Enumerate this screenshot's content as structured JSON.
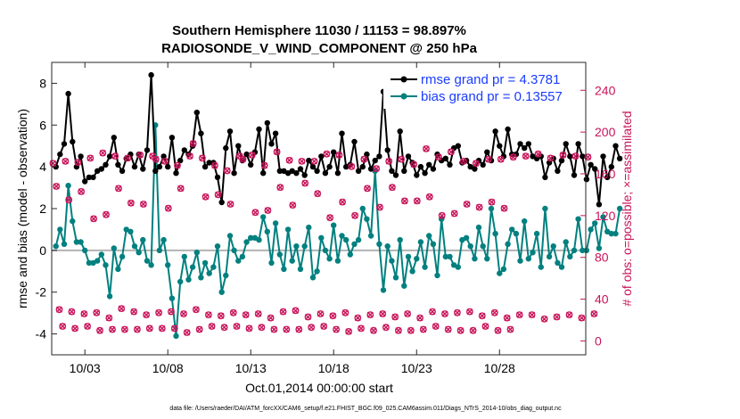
{
  "chart_data": {
    "type": "line",
    "title": "Southern Hemisphere 11030 / 11153 = 98.897%",
    "subtitle": "RADIOSONDE_V_WIND_COMPONENT @ 250 hPa",
    "xlabel": "Oct.01,2014 00:00:00 start",
    "ylabel": "rmse and bias (model - observation)",
    "ylabel_right": "# of obs: o=possible; ×=assimilated",
    "footer": "data file: /Users/raeder/DAI/ATM_forcXX/CAM6_setup/f.e21.FHIST_BGC.f09_025.CAM6assim.011/Diags_NTrS_2014-10/obs_diag_output.nc",
    "xlim": [
      1.0,
      33.2
    ],
    "ylim": [
      -5,
      9
    ],
    "ylim_right": [
      -13.3,
      266.7
    ],
    "x_ticks": [
      3,
      8,
      13,
      18,
      23,
      28
    ],
    "x_tick_labels": [
      "10/03",
      "10/08",
      "10/13",
      "10/18",
      "10/23",
      "10/28"
    ],
    "y_ticks": [
      -4,
      -2,
      0,
      2,
      4,
      6,
      8
    ],
    "y_tick_labels": [
      "-4",
      "-2",
      "0",
      "2",
      "4",
      "6",
      "8"
    ],
    "y2_ticks": [
      0,
      40,
      80,
      120,
      160,
      200,
      240
    ],
    "y2_tick_labels": [
      "0",
      "40",
      "80",
      "120",
      "160",
      "200",
      "240"
    ],
    "reference_line_y": 0,
    "legend": [
      "rmse grand pr = 4.3781",
      "bias grand pr = 0.13557"
    ],
    "legend_position": "top-right",
    "colors": {
      "rmse": "#000000",
      "bias": "#00807f",
      "obs": "#c8145a",
      "zero": "#b3b3b3"
    },
    "x_start": 1.25,
    "x_step": 0.25,
    "series": [
      {
        "name": "rmse",
        "values": [
          4.0,
          4.6,
          5.1,
          7.5,
          5.2,
          4.0,
          4.5,
          3.3,
          3.5,
          3.5,
          3.8,
          3.9,
          4.1,
          4.5,
          5.4,
          4.1,
          3.8,
          4.4,
          4.6,
          4.0,
          4.6,
          3.9,
          4.8,
          8.4,
          3.8,
          4.0,
          4.5,
          4.0,
          5.4,
          3.7,
          4.3,
          4.8,
          4.6,
          5.0,
          6.6,
          5.6,
          4.0,
          4.2,
          4.2,
          3.5,
          2.3,
          4.9,
          5.7,
          3.7,
          5.0,
          4.3,
          4.6,
          4.1,
          4.7,
          5.8,
          3.7,
          6.1,
          5.1,
          5.6,
          3.8,
          3.8,
          3.7,
          3.8,
          3.7,
          3.9,
          3.6,
          4.3,
          4.0,
          3.8,
          4.5,
          3.7,
          4.0,
          4.7,
          3.7,
          5.6,
          4.0,
          4.1,
          5.2,
          3.8,
          4.0,
          4.6,
          3.9,
          4.3,
          4.5,
          7.6,
          4.8,
          3.8,
          3.6,
          5.7,
          3.8,
          4.5,
          4.2,
          3.6,
          4.0,
          3.7,
          4.1,
          3.9,
          4.6,
          4.3,
          4.4,
          4.1,
          4.9,
          5.0,
          4.2,
          4.3,
          4.0,
          3.9,
          4.3,
          4.1,
          4.7,
          4.3,
          5.7,
          5.0,
          4.5,
          5.8,
          4.6,
          4.6,
          5.1,
          4.9,
          5.1,
          4.5,
          4.4,
          4.5,
          3.5,
          4.2,
          4.4,
          3.8,
          4.3,
          5.1,
          4.5,
          3.6,
          5.1,
          4.5,
          3.4,
          4.1,
          3.9,
          2.2,
          4.5,
          3.5,
          4.0,
          5.0,
          4.4
        ]
      },
      {
        "name": "bias",
        "values": [
          0.2,
          1.0,
          0.3,
          3.1,
          1.4,
          0.4,
          0.4,
          0.0,
          -0.6,
          -0.6,
          -0.5,
          -0.2,
          -0.7,
          -2.2,
          0.1,
          -0.9,
          -0.3,
          1.0,
          0.9,
          0.2,
          -0.1,
          0.5,
          -0.5,
          -0.7,
          6.0,
          0.0,
          0.5,
          -0.7,
          -2.3,
          -4.1,
          -1.5,
          -0.3,
          -1.4,
          -0.8,
          -0.1,
          -1.3,
          -0.6,
          -1.1,
          -0.8,
          0.2,
          -2.0,
          -1.2,
          0.7,
          0.0,
          -0.5,
          -0.3,
          0.4,
          0.6,
          0.6,
          0.5,
          1.6,
          0.9,
          -0.6,
          1.3,
          -0.2,
          -0.9,
          1.0,
          -0.5,
          0.2,
          -0.9,
          0.2,
          1.1,
          -1.3,
          -1.0,
          0.6,
          0.0,
          -0.4,
          1.2,
          -0.5,
          0.7,
          0.5,
          -0.2,
          0.3,
          0.5,
          2.0,
          1.5,
          0.7,
          3.8,
          0.3,
          -1.9,
          0.2,
          -0.5,
          -1.3,
          0.5,
          -1.7,
          -0.3,
          -1.0,
          -0.4,
          0.4,
          -0.8,
          0.7,
          0.3,
          -1.2,
          1.5,
          -0.3,
          -0.3,
          -0.7,
          -0.8,
          0.5,
          0.6,
          0.2,
          -0.4,
          1.1,
          0.2,
          -0.4,
          2.0,
          0.8,
          -1.1,
          -0.9,
          0.3,
          1.0,
          0.8,
          -0.5,
          1.4,
          -0.4,
          -0.1,
          0.8,
          -0.8,
          2.0,
          -0.3,
          0.2,
          -0.6,
          -0.8,
          0.4,
          -0.3,
          0.0,
          1.5,
          0.0,
          0.0,
          1.0,
          1.3,
          0.1,
          1.6,
          0.9,
          0.8,
          0.8,
          2.0
        ]
      },
      {
        "name": "obs_possible_0000Z",
        "values": [
          170,
          30,
          172,
          28,
          171,
          26,
          175,
          27,
          180,
          22,
          177,
          31,
          175,
          28,
          178,
          25,
          177,
          27,
          172,
          28,
          168,
          26,
          177,
          30,
          175,
          25,
          168,
          24,
          163,
          27,
          177,
          25,
          178,
          26,
          168,
          22,
          181,
          28,
          173,
          29,
          172,
          23,
          172,
          26,
          179,
          24,
          178,
          27,
          167,
          22,
          174,
          25,
          165,
          26,
          172,
          23,
          174,
          26,
          169,
          22,
          184,
          28,
          176,
          26,
          181,
          27,
          172,
          28,
          170,
          24,
          174,
          27,
          174,
          22,
          176,
          25,
          177,
          25,
          179,
          21,
          175,
          23,
          178,
          25,
          177,
          22,
          176,
          26
        ]
      },
      {
        "name": "obs_possible_1200Z",
        "values": [
          148,
          14,
          135,
          12,
          143,
          14,
          117,
          10,
          121,
          11,
          146,
          11,
          132,
          11,
          131,
          12,
          174,
          12,
          127,
          12,
          146,
          8,
          189,
          11,
          138,
          14,
          140,
          13,
          131,
          14,
          174,
          12,
          123,
          13,
          125,
          11,
          147,
          11,
          130,
          11,
          151,
          13,
          141,
          14,
          118,
          11,
          133,
          9,
          120,
          12,
          146,
          10,
          128,
          13,
          147,
          10,
          134,
          10,
          134,
          11,
          138,
          14,
          120,
          11,
          122,
          10,
          131,
          10,
          128,
          14,
          133,
          10,
          127,
          11
        ]
      }
    ]
  }
}
